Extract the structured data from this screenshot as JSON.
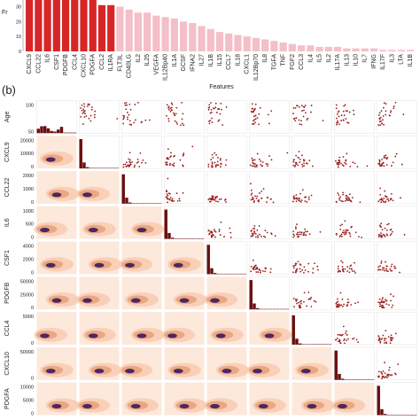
{
  "chart_data": [
    {
      "type": "bar",
      "title": "",
      "xlabel": "Features",
      "ylabel": "Fr",
      "ylim": [
        0,
        38
      ],
      "yticks": [
        0,
        10,
        20,
        30
      ],
      "categories": [
        "CXCL9",
        "CCL22",
        "IL6",
        "CSF1",
        "PDGFB",
        "CCL4",
        "CXCL10",
        "PDGFA",
        "CCL2",
        "IL1RA",
        "FLT3L",
        "CD40LG",
        "IL2",
        "IL25",
        "VEGFA",
        "IL12Bp40",
        "IL1A",
        "GCSF",
        "IFNA2",
        "IL27",
        "IL1B",
        "IL15",
        "CCL7",
        "IL18",
        "CXCL1",
        "IL12Bp70",
        "IL8",
        "TGFA",
        "TNF",
        "FGF2",
        "CCL3",
        "IL4",
        "IL5",
        "IL2",
        "IL17A",
        "IL13",
        "IL10",
        "IL7",
        "IFNG",
        "IL17F",
        "IL3",
        "LTA",
        "IL1B"
      ],
      "values": [
        38,
        38,
        38,
        38,
        38,
        38,
        38,
        38,
        31,
        31,
        30,
        28,
        26,
        26,
        24,
        23,
        22,
        20,
        19,
        17,
        15,
        13,
        12,
        11,
        10,
        9,
        8,
        7,
        6,
        5,
        4,
        4,
        3,
        3,
        3,
        2,
        2,
        2,
        2,
        1,
        1,
        1,
        1
      ],
      "highlighted_count": 10,
      "colors": {
        "highlight": "#d62627",
        "rest": "#f4bfc8"
      }
    },
    {
      "type": "scatter",
      "panel_label": "(b)",
      "layout": "pairplot",
      "variables": [
        "Age",
        "CXCL9",
        "CCL22",
        "IL6",
        "CSF1",
        "PDGFB",
        "CCL4",
        "CXCL10",
        "PDGFA"
      ],
      "row_ticks": [
        [
          "50",
          "100"
        ],
        [
          "0",
          "10000",
          "20000"
        ],
        [
          "0",
          "1000",
          "2000"
        ],
        [
          "0",
          "500",
          "1000"
        ],
        [
          "0",
          "2000",
          "4000"
        ],
        [
          "0",
          "25000",
          "50000"
        ],
        [
          "0",
          "5000"
        ],
        [
          "0",
          "50000"
        ],
        [
          "0",
          "5000",
          "10000"
        ]
      ],
      "lower": "density (kde)",
      "diagonal": "histogram",
      "upper": "scatter",
      "colors": {
        "point": "#9b1c1c",
        "hist": "#6b0f0f",
        "kde_bg": "#fde8dc",
        "kde_mid": "#e8a07a",
        "kde_core": "#3c1a5b"
      }
    }
  ]
}
